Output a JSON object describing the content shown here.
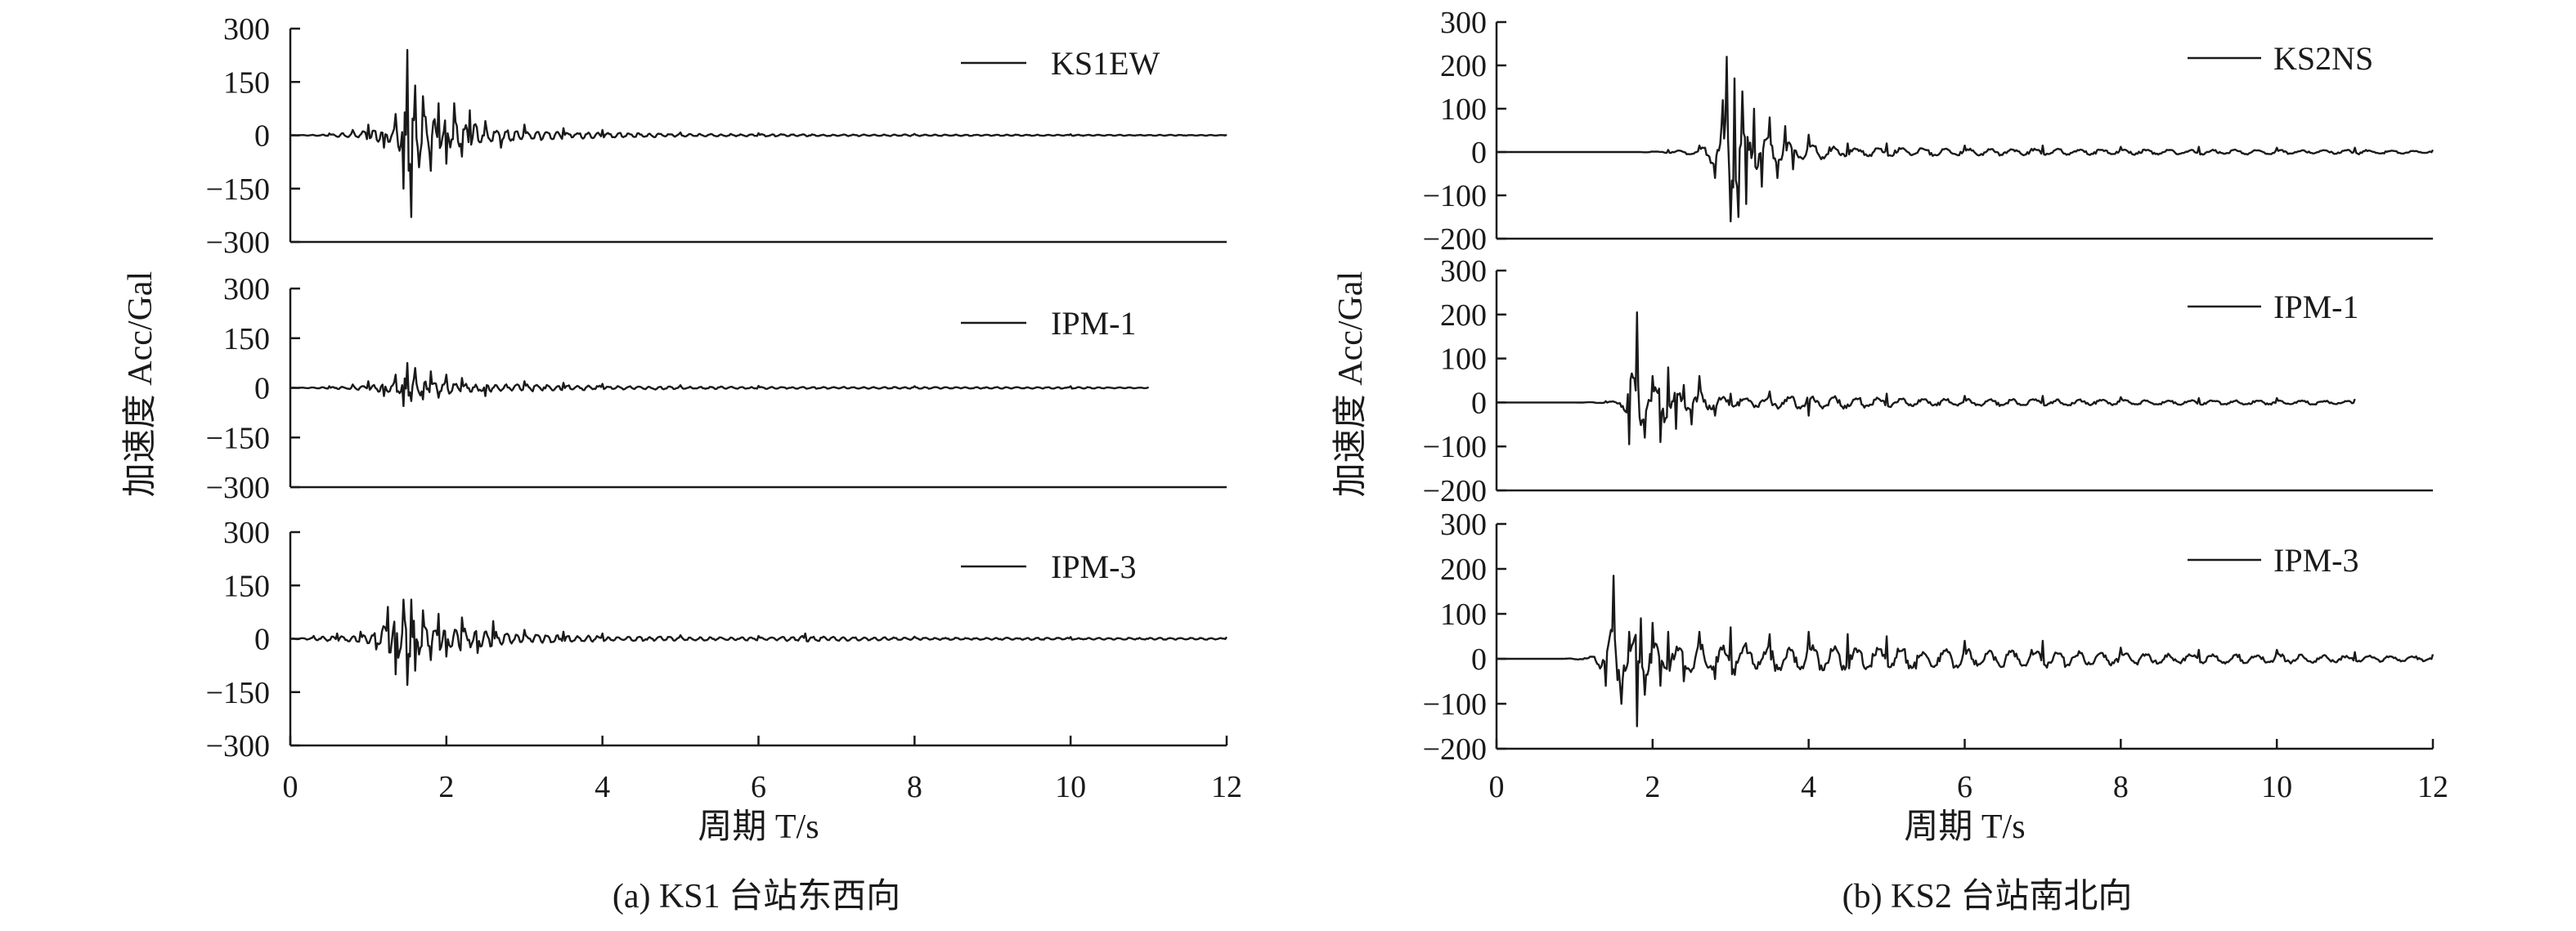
{
  "chart_data": [
    {
      "type": "line",
      "caption": "(a) KS1 台站东西向",
      "ylabel": "加速度 Acc/Gal",
      "xlabel": "周期 T/s",
      "xlim": [
        0,
        12
      ],
      "x_ticks": [
        "0",
        "2",
        "4",
        "6",
        "8",
        "10",
        "12"
      ],
      "panels": [
        {
          "legend": "KS1EW",
          "ylim": [
            -300,
            300
          ],
          "y_ticks": [
            "300",
            "150",
            "0",
            "−150",
            "−300"
          ],
          "series": [
            {
              "name": "KS1EW",
              "x": [
                0,
                0.5,
                0.8,
                1.0,
                1.2,
                1.35,
                1.45,
                1.5,
                1.55,
                1.6,
                1.65,
                1.7,
                1.8,
                1.9,
                2.0,
                2.1,
                2.2,
                2.3,
                2.5,
                2.7,
                3.0,
                3.5,
                4.0,
                5.0,
                6.0,
                8.0,
                10.0,
                12.0
              ],
              "y": [
                0,
                5,
                15,
                30,
                -35,
                60,
                -150,
                240,
                -230,
                140,
                -90,
                110,
                -100,
                90,
                -80,
                90,
                -60,
                70,
                40,
                -35,
                30,
                20,
                15,
                8,
                6,
                4,
                3,
                2
              ]
            }
          ]
        },
        {
          "legend": "IPM-1",
          "ylim": [
            -300,
            300
          ],
          "y_ticks": [
            "300",
            "150",
            "0",
            "−150",
            "−300"
          ],
          "series": [
            {
              "name": "IPM-1",
              "x": [
                0,
                0.5,
                0.8,
                1.0,
                1.2,
                1.35,
                1.45,
                1.5,
                1.55,
                1.6,
                1.7,
                1.8,
                1.9,
                2.0,
                2.2,
                2.5,
                3.0,
                3.5,
                4.0,
                5.0,
                6.0,
                8.0,
                10.0,
                11.0
              ],
              "y": [
                0,
                5,
                10,
                20,
                -25,
                40,
                -55,
                75,
                -40,
                60,
                -35,
                50,
                -30,
                40,
                30,
                -25,
                20,
                15,
                12,
                8,
                6,
                5,
                5,
                2
              ]
            }
          ]
        },
        {
          "legend": "IPM-3",
          "ylim": [
            -300,
            300
          ],
          "y_ticks": [
            "300",
            "150",
            "0",
            "−150",
            "−300"
          ],
          "series": [
            {
              "name": "IPM-3",
              "x": [
                0,
                0.3,
                0.6,
                0.9,
                1.1,
                1.25,
                1.35,
                1.45,
                1.5,
                1.55,
                1.6,
                1.7,
                1.8,
                1.9,
                2.0,
                2.2,
                2.4,
                2.6,
                3.0,
                3.5,
                4.0,
                5.0,
                6.0,
                6.6,
                8.0,
                10.0,
                12.0
              ],
              "y": [
                0,
                8,
                15,
                20,
                -30,
                90,
                -100,
                110,
                -130,
                110,
                -90,
                80,
                -60,
                70,
                -50,
                60,
                -40,
                50,
                25,
                20,
                15,
                10,
                8,
                15,
                6,
                5,
                5
              ]
            }
          ]
        }
      ]
    },
    {
      "type": "line",
      "caption": "(b) KS2 台站南北向",
      "ylabel": "加速度 Acc/Gal",
      "xlabel": "周期 T/s",
      "xlim": [
        0,
        12
      ],
      "x_ticks": [
        "0",
        "2",
        "4",
        "6",
        "8",
        "10",
        "12"
      ],
      "panels": [
        {
          "legend": "KS2NS",
          "ylim": [
            -200,
            300
          ],
          "y_ticks": [
            "300",
            "200",
            "100",
            "0",
            "−100",
            "−200"
          ],
          "series": [
            {
              "name": "KS2NS",
              "x": [
                0,
                1.8,
                2.2,
                2.6,
                2.8,
                2.9,
                2.95,
                3.0,
                3.05,
                3.1,
                3.15,
                3.2,
                3.3,
                3.4,
                3.5,
                3.6,
                3.7,
                3.8,
                4.0,
                4.5,
                5.0,
                6.0,
                7.0,
                8.0,
                9.0,
                10.0,
                11.0,
                12.0
              ],
              "y": [
                0,
                0,
                5,
                15,
                -60,
                120,
                220,
                -160,
                170,
                -150,
                140,
                -120,
                100,
                -80,
                80,
                -60,
                60,
                -40,
                40,
                20,
                20,
                15,
                15,
                12,
                12,
                10,
                10,
                5
              ]
            }
          ]
        },
        {
          "legend": "IPM-1",
          "ylim": [
            -200,
            300
          ],
          "y_ticks": [
            "300",
            "200",
            "100",
            "0",
            "−100",
            "−200"
          ],
          "series": [
            {
              "name": "IPM-1",
              "x": [
                0,
                1.0,
                1.4,
                1.6,
                1.7,
                1.8,
                1.9,
                2.0,
                2.1,
                2.2,
                2.3,
                2.4,
                2.5,
                2.6,
                2.8,
                3.0,
                3.5,
                4.0,
                5.0,
                6.0,
                7.0,
                8.0,
                9.0,
                10.0,
                11.0
              ],
              "y": [
                0,
                0,
                3,
                -10,
                -95,
                205,
                -80,
                60,
                -90,
                80,
                -60,
                40,
                -50,
                60,
                -30,
                20,
                25,
                -30,
                20,
                15,
                15,
                12,
                10,
                10,
                8
              ]
            }
          ]
        },
        {
          "legend": "IPM-3",
          "ylim": [
            -200,
            300
          ],
          "y_ticks": [
            "300",
            "200",
            "100",
            "0",
            "−100",
            "−200"
          ],
          "series": [
            {
              "name": "IPM-3",
              "x": [
                0,
                0.8,
                1.2,
                1.4,
                1.5,
                1.6,
                1.7,
                1.8,
                1.85,
                1.9,
                2.0,
                2.1,
                2.2,
                2.4,
                2.6,
                2.8,
                3.0,
                3.5,
                4.0,
                4.5,
                5.0,
                6.0,
                7.0,
                8.0,
                9.0,
                10.0,
                11.0,
                12.0
              ],
              "y": [
                0,
                0,
                5,
                -60,
                185,
                -100,
                60,
                -150,
                90,
                -80,
                80,
                -60,
                60,
                -50,
                60,
                -45,
                70,
                55,
                60,
                55,
                50,
                40,
                40,
                25,
                20,
                20,
                15,
                10
              ]
            }
          ]
        }
      ]
    }
  ]
}
